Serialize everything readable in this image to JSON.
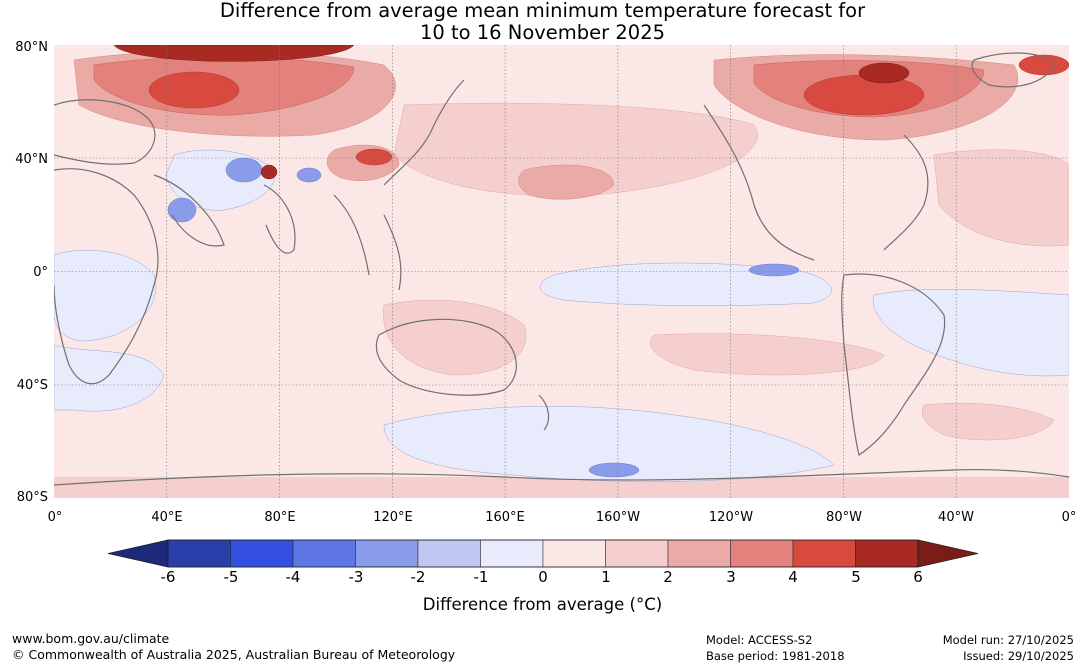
{
  "title_line1": "Difference from average mean minimum temperature forecast for",
  "title_line2": "10 to 16 November 2025",
  "map": {
    "lat_labels": [
      "80°N",
      "40°N",
      "0°",
      "40°S",
      "80°S"
    ],
    "lon_labels": [
      "0°",
      "40°E",
      "80°E",
      "120°E",
      "160°E",
      "160°W",
      "120°W",
      "80°W",
      "40°W",
      "0°"
    ]
  },
  "colorbar": {
    "ticks": [
      "-6",
      "-5",
      "-4",
      "-3",
      "-2",
      "-1",
      "0",
      "1",
      "2",
      "3",
      "4",
      "5",
      "6"
    ],
    "label": "Difference from average (°C)",
    "under_color": "#1d2a7a",
    "over_color": "#7a1d16",
    "bins": [
      {
        "range": "-6 to -5",
        "color": "#2a3eaa"
      },
      {
        "range": "-5 to -4",
        "color": "#3350e0"
      },
      {
        "range": "-4 to -3",
        "color": "#5d75e5"
      },
      {
        "range": "-3 to -2",
        "color": "#8a9ce9"
      },
      {
        "range": "-2 to -1",
        "color": "#bfc7f2"
      },
      {
        "range": "-1 to 0",
        "color": "#e8ebfb"
      },
      {
        "range": "0 to 1",
        "color": "#fbe7e6"
      },
      {
        "range": "1 to 2",
        "color": "#f4cfcd"
      },
      {
        "range": "2 to 3",
        "color": "#eaaaa6"
      },
      {
        "range": "3 to 4",
        "color": "#e3827c"
      },
      {
        "range": "4 to 5",
        "color": "#d84a40"
      },
      {
        "range": "5 to 6",
        "color": "#a92a22"
      }
    ]
  },
  "footer": {
    "website": "www.bom.gov.au/climate",
    "copyright": "© Commonwealth of Australia 2025, Australian Bureau of Meteorology",
    "model": "Model: ACCESS-S2",
    "base_period": "Base period: 1981-2018",
    "model_run": "Model run: 27/10/2025",
    "issued": "Issued: 29/10/2025"
  }
}
